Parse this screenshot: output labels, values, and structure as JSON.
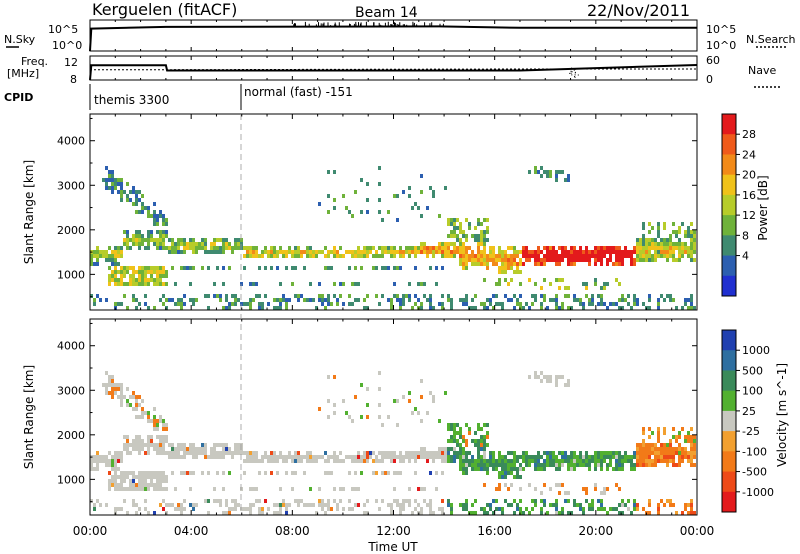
{
  "header": {
    "station": "Kerguelen (fitACF)",
    "beam": "Beam 14",
    "date": "22/Nov/2011"
  },
  "top_panels": {
    "nsky_label": "N.Sky",
    "nsky_ticks": [
      "10^5",
      "10^0"
    ],
    "nsearch_label": "N.Search",
    "nsearch_ticks": [
      "10^5",
      "10^0"
    ],
    "freq_label": "Freq.",
    "freq_unit": "[MHz]",
    "freq_ticks": [
      "12",
      "8"
    ],
    "nave_label": "Nave",
    "nave_ticks": [
      "60",
      "0"
    ],
    "cpid_label": "CPID",
    "cpid_segments": [
      {
        "label": "themis 3300",
        "start": 0,
        "end": 6
      },
      {
        "label": "normal (fast) -151",
        "start": 6,
        "end": 24
      }
    ]
  },
  "colorbars": {
    "power": {
      "title": "Power [dB]",
      "ticks": [
        "28",
        "24",
        "20",
        "16",
        "12",
        "8",
        "4"
      ],
      "colors": [
        "#2030d0",
        "#2c5fb0",
        "#3f8a70",
        "#6fb23a",
        "#b7cc2a",
        "#f0c21a",
        "#f28a18",
        "#ef5a1a",
        "#e31a1c"
      ]
    },
    "velocity": {
      "title": "Velocity [m s^-1]",
      "ticks": [
        "1000",
        "500",
        "100",
        "25",
        "-25",
        "-100",
        "-500",
        "-1000"
      ],
      "colors": [
        "#2040b0",
        "#2e6fa0",
        "#3a8a5a",
        "#52b030",
        "#c8c8c0",
        "#f2a030",
        "#f27a18",
        "#ee4a18",
        "#e31a1c"
      ]
    }
  },
  "chart_data": [
    {
      "type": "line",
      "panel": "N.Sky / N.Search",
      "x": [
        0,
        0.05,
        3,
        13.8,
        17,
        24
      ],
      "y_log10": [
        0,
        4.0,
        4.3,
        4.4,
        4.15,
        4.15
      ],
      "ylabel_left": "N.Sky",
      "ylabel_right": "N.Search"
    },
    {
      "type": "line",
      "panel": "Freq. / Nave",
      "series": [
        {
          "name": "Freq.",
          "x": [
            0,
            0.05,
            3,
            3.05,
            17,
            24
          ],
          "values": [
            8,
            12.2,
            12.2,
            10.7,
            10.7,
            12.3
          ]
        },
        {
          "name": "Nave",
          "x": [
            0,
            3,
            17,
            24
          ],
          "values": [
            28,
            28,
            30,
            30
          ]
        }
      ],
      "ylim_left": [
        8,
        12
      ],
      "ylim_right": [
        0,
        60
      ]
    },
    {
      "type": "heatmap",
      "panel": "Power",
      "x_range": [
        0,
        24
      ],
      "ylim": [
        200,
        4600
      ],
      "ylabel": "Slant Range [km]",
      "yticks": [
        1000,
        2000,
        3000,
        4000
      ],
      "colorbar": "Power [dB]",
      "regions": [
        {
          "t": [
            0,
            6
          ],
          "r": [
            1500,
            1900
          ],
          "level": 2
        },
        {
          "t": [
            6,
            14
          ],
          "r": [
            1300,
            1600
          ],
          "level": 3
        },
        {
          "t": [
            14,
            17
          ],
          "r": [
            1200,
            1700
          ],
          "level": 4
        },
        {
          "t": [
            17,
            21.5
          ],
          "r": [
            1100,
            1700
          ],
          "level": 7
        },
        {
          "t": [
            1,
            2.5
          ],
          "r": [
            700,
            1100
          ],
          "level": 5
        },
        {
          "t": [
            0.5,
            2
          ],
          "r": [
            2200,
            3300
          ],
          "level": 1
        }
      ]
    },
    {
      "type": "heatmap",
      "panel": "Velocity",
      "x_range": [
        0,
        24
      ],
      "ylim": [
        200,
        4600
      ],
      "ylabel": "Slant Range [km]",
      "yticks": [
        1000,
        2000,
        3000,
        4000
      ],
      "colorbar": "Velocity [m s^-1]",
      "regions": [
        {
          "t": [
            0,
            14
          ],
          "r": [
            1300,
            1700
          ],
          "class": "ground"
        },
        {
          "t": [
            14,
            17
          ],
          "r": [
            800,
            1800
          ],
          "class": "positive"
        },
        {
          "t": [
            17,
            21.5
          ],
          "r": [
            1100,
            1800
          ],
          "class": "positive"
        },
        {
          "t": [
            21.5,
            24
          ],
          "r": [
            1200,
            2000
          ],
          "class": "negative"
        }
      ]
    }
  ],
  "x_axis": {
    "ticks": [
      "00:00",
      "04:00",
      "08:00",
      "12:00",
      "16:00",
      "20:00",
      "00:00"
    ],
    "label": "Time UT"
  }
}
